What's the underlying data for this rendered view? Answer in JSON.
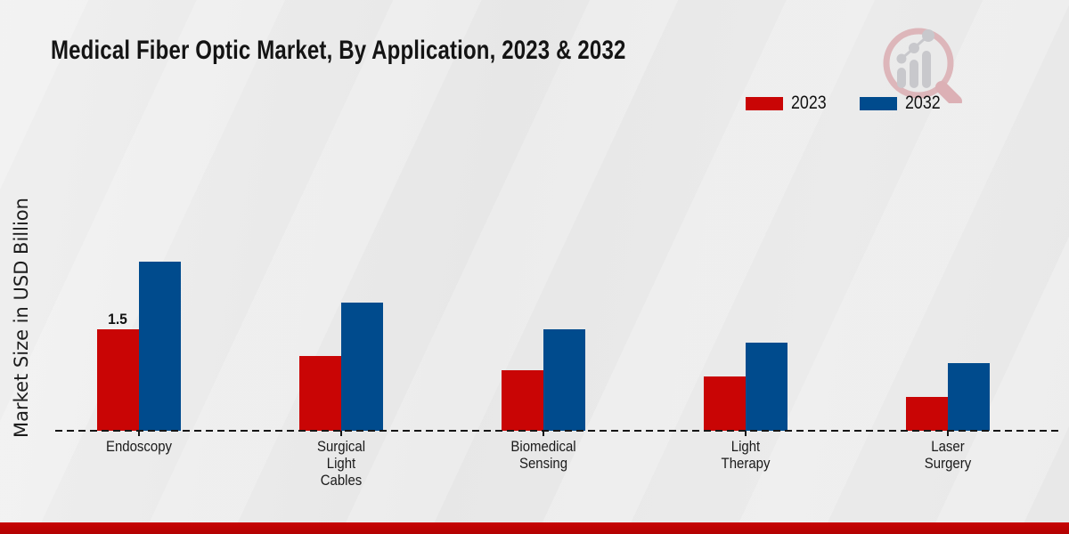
{
  "page": {
    "title": "Medical Fiber Optic Market, By Application, 2023 & 2032",
    "ylabel": "Market Size in USD Billion"
  },
  "legend": {
    "position": "top-right",
    "items": [
      "2023",
      "2032"
    ]
  },
  "colors": {
    "bar_2023": "#c90505",
    "bar_2032": "#004b8d",
    "footer_band": "#bf0303",
    "background": "#e9e9e9",
    "baseline": "#151515",
    "logo_pink": "#ddb6ba",
    "logo_gray": "#c8c8cc"
  },
  "chart_data": {
    "type": "bar",
    "title": "Medical Fiber Optic Market, By Application, 2023 & 2032",
    "xlabel": "",
    "ylabel": "Market Size in USD Billion",
    "categories": [
      "Endoscopy",
      "Surgical\nLight\nCables",
      "Biomedical\nSensing",
      "Light\nTherapy",
      "Laser\nSurgery"
    ],
    "series": [
      {
        "name": "2023",
        "color": "#c90505",
        "values": [
          1.5,
          1.1,
          0.9,
          0.8,
          0.5
        ]
      },
      {
        "name": "2032",
        "color": "#004b8d",
        "values": [
          2.5,
          1.9,
          1.5,
          1.3,
          1.0
        ]
      }
    ],
    "annotations": [
      {
        "series": "2023",
        "category": "Endoscopy",
        "text": "1.5"
      }
    ],
    "ylim": [
      0,
      2.6
    ],
    "grid": false,
    "legend_position": "top-right",
    "baseline_style": "dashed",
    "y_axis_ticks_visible": false
  }
}
